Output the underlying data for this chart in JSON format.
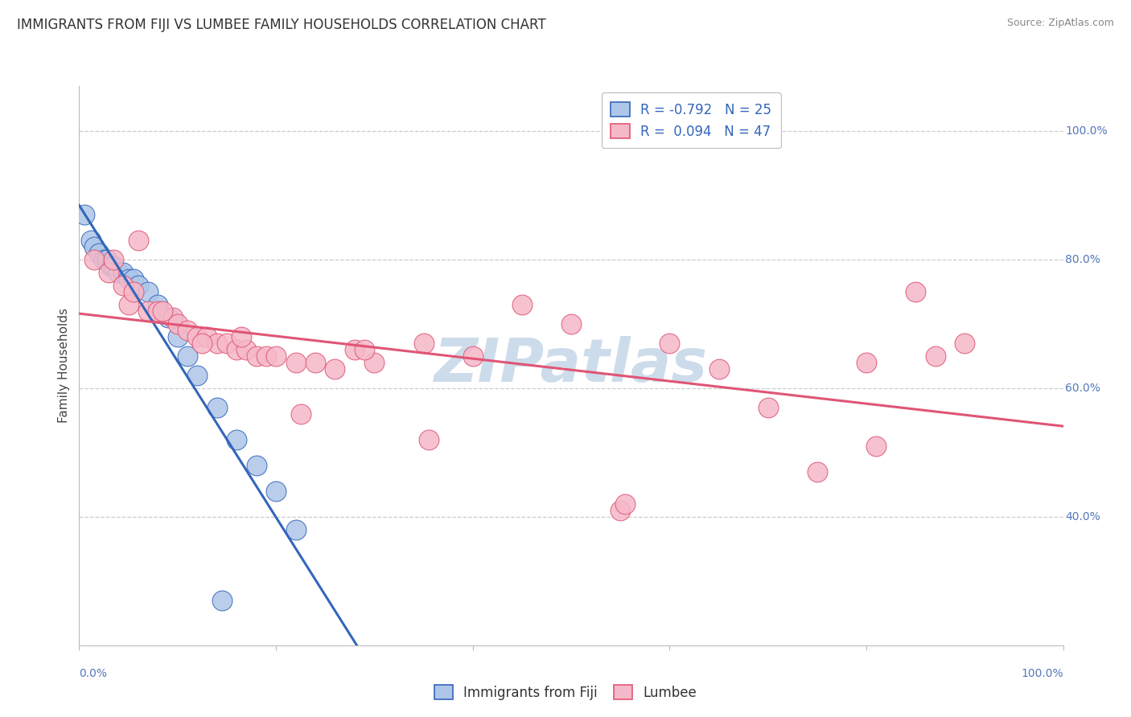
{
  "title": "IMMIGRANTS FROM FIJI VS LUMBEE FAMILY HOUSEHOLDS CORRELATION CHART",
  "source": "Source: ZipAtlas.com",
  "legend_fiji_label": "Immigrants from Fiji",
  "legend_lumbee_label": "Lumbee",
  "fiji_r": "-0.792",
  "fiji_n": "25",
  "lumbee_r": "0.094",
  "lumbee_n": "47",
  "fiji_color": "#aec6e8",
  "fiji_line_color": "#3366bb",
  "lumbee_color": "#f5b8c8",
  "lumbee_line_color": "#e05575",
  "background_color": "#ffffff",
  "watermark_color": "#cddcea",
  "grid_color": "#cccccc",
  "fiji_points_x": [
    0.5,
    1.2,
    1.5,
    2.0,
    2.5,
    2.8,
    3.2,
    3.5,
    4.0,
    4.5,
    5.0,
    5.5,
    6.0,
    7.0,
    8.0,
    9.0,
    10.0,
    11.0,
    12.0,
    14.0,
    16.0,
    18.0,
    20.0,
    22.0,
    14.5
  ],
  "fiji_points_y": [
    87,
    83,
    82,
    81,
    80,
    80,
    79,
    79,
    78,
    78,
    77,
    77,
    76,
    75,
    73,
    71,
    68,
    65,
    62,
    57,
    52,
    48,
    44,
    38,
    27
  ],
  "lumbee_points_x": [
    1.5,
    3.0,
    4.5,
    5.0,
    6.0,
    7.0,
    8.0,
    9.5,
    10.0,
    11.0,
    12.0,
    13.0,
    14.0,
    15.0,
    16.0,
    17.0,
    18.0,
    19.0,
    20.0,
    22.0,
    24.0,
    26.0,
    28.0,
    30.0,
    35.0,
    40.0,
    45.0,
    50.0,
    55.0,
    60.0,
    65.0,
    70.0,
    75.0,
    80.0,
    85.0,
    87.0,
    90.0,
    3.5,
    5.5,
    8.5,
    12.5,
    16.5,
    22.5,
    35.5,
    55.5,
    81.0,
    29.0
  ],
  "lumbee_points_y": [
    80,
    78,
    76,
    73,
    83,
    72,
    72,
    71,
    70,
    69,
    68,
    68,
    67,
    67,
    66,
    66,
    65,
    65,
    65,
    64,
    64,
    63,
    66,
    64,
    67,
    65,
    73,
    70,
    41,
    67,
    63,
    57,
    47,
    64,
    75,
    65,
    67,
    80,
    75,
    72,
    67,
    68,
    56,
    52,
    42,
    51,
    66
  ],
  "xlim": [
    0,
    100
  ],
  "ylim": [
    20,
    107
  ],
  "title_fontsize": 12,
  "axis_label_fontsize": 11,
  "tick_fontsize": 10,
  "legend_fontsize": 12
}
